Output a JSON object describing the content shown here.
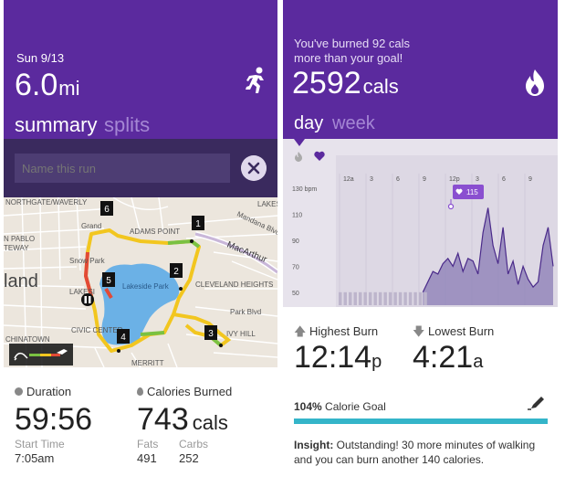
{
  "left": {
    "date": "Sun 9/13",
    "distance_value": "6.0",
    "distance_unit": "mi",
    "tabs": [
      "summary",
      "splits"
    ],
    "name_placeholder": "Name this run",
    "map_labels": {
      "northgate": "NORTHGATE/WAVERLY",
      "lakes": "LAKES",
      "grand": "Grand",
      "adams_point": "ADAMS POINT",
      "mandana": "Mandana Blvd",
      "pablo": "N PABLO",
      "teway": "TEWAY",
      "macarthur": "MacArthur",
      "snow_park": "Snow Park",
      "land": "land",
      "lakeside_park": "Lakeside Park",
      "cleveland_heights": "CLEVELAND HEIGHTS",
      "lakeside": "LAKESI",
      "park_blvd": "Park Blvd",
      "chinatown": "CHINATOWN",
      "civic_center": "CIVIC CENTER",
      "ivy_hill": "IVY HILL",
      "merritt": "MERRITT"
    },
    "markers": [
      "1",
      "2",
      "3",
      "4",
      "5",
      "6"
    ],
    "duration_label": "Duration",
    "duration_value": "59:56",
    "calories_label": "Calories Burned",
    "calories_value": "743",
    "calories_unit": "cals",
    "start_time_label": "Start Time",
    "start_time_value": "7:05am",
    "fats_label": "Fats",
    "fats_value": "491",
    "carbs_label": "Carbs",
    "carbs_value": "252"
  },
  "right": {
    "message_line1": "You've burned 92 cals",
    "message_line2": "more than your goal!",
    "cals_value": "2592",
    "cals_unit": "cals",
    "tabs": [
      "day",
      "week"
    ],
    "highest_label": "Highest Burn",
    "highest_value": "12:14",
    "highest_suffix": "p",
    "lowest_label": "Lowest Burn",
    "lowest_value": "4:21",
    "lowest_suffix": "a",
    "goal_percent": "104%",
    "goal_label": "Calorie Goal",
    "goal_progress": 1.04,
    "insight_label": "Insight:",
    "insight_text": "Outstanding! 30 more minutes of walking and you can burn another 140 calories."
  },
  "chart_data": {
    "type": "area",
    "x_tick_labels": [
      "12a",
      "3",
      "6",
      "9",
      "12p",
      "3",
      "6",
      "9"
    ],
    "y_tick_labels": [
      "130 bpm",
      "110",
      "90",
      "70",
      "50"
    ],
    "ylim": [
      40,
      140
    ],
    "callout": "115",
    "series": [
      {
        "values": [
          50,
          50,
          50,
          50,
          50,
          50,
          50,
          50,
          50,
          50,
          50,
          50,
          50,
          50,
          50,
          50,
          50,
          50,
          58,
          66,
          64,
          72,
          76,
          70,
          80,
          66,
          76,
          74,
          64,
          96,
          115,
          86,
          72,
          100,
          64,
          74,
          56,
          70,
          60,
          54,
          58,
          86,
          100,
          70
        ]
      }
    ]
  },
  "colors": {
    "header_purple": "#5b2a9e",
    "name_bar": "#3a2a5e",
    "goal_bar": "#34b5c9",
    "chart_fill": "#8a7cb5",
    "chart_line": "#4a2a8a"
  }
}
